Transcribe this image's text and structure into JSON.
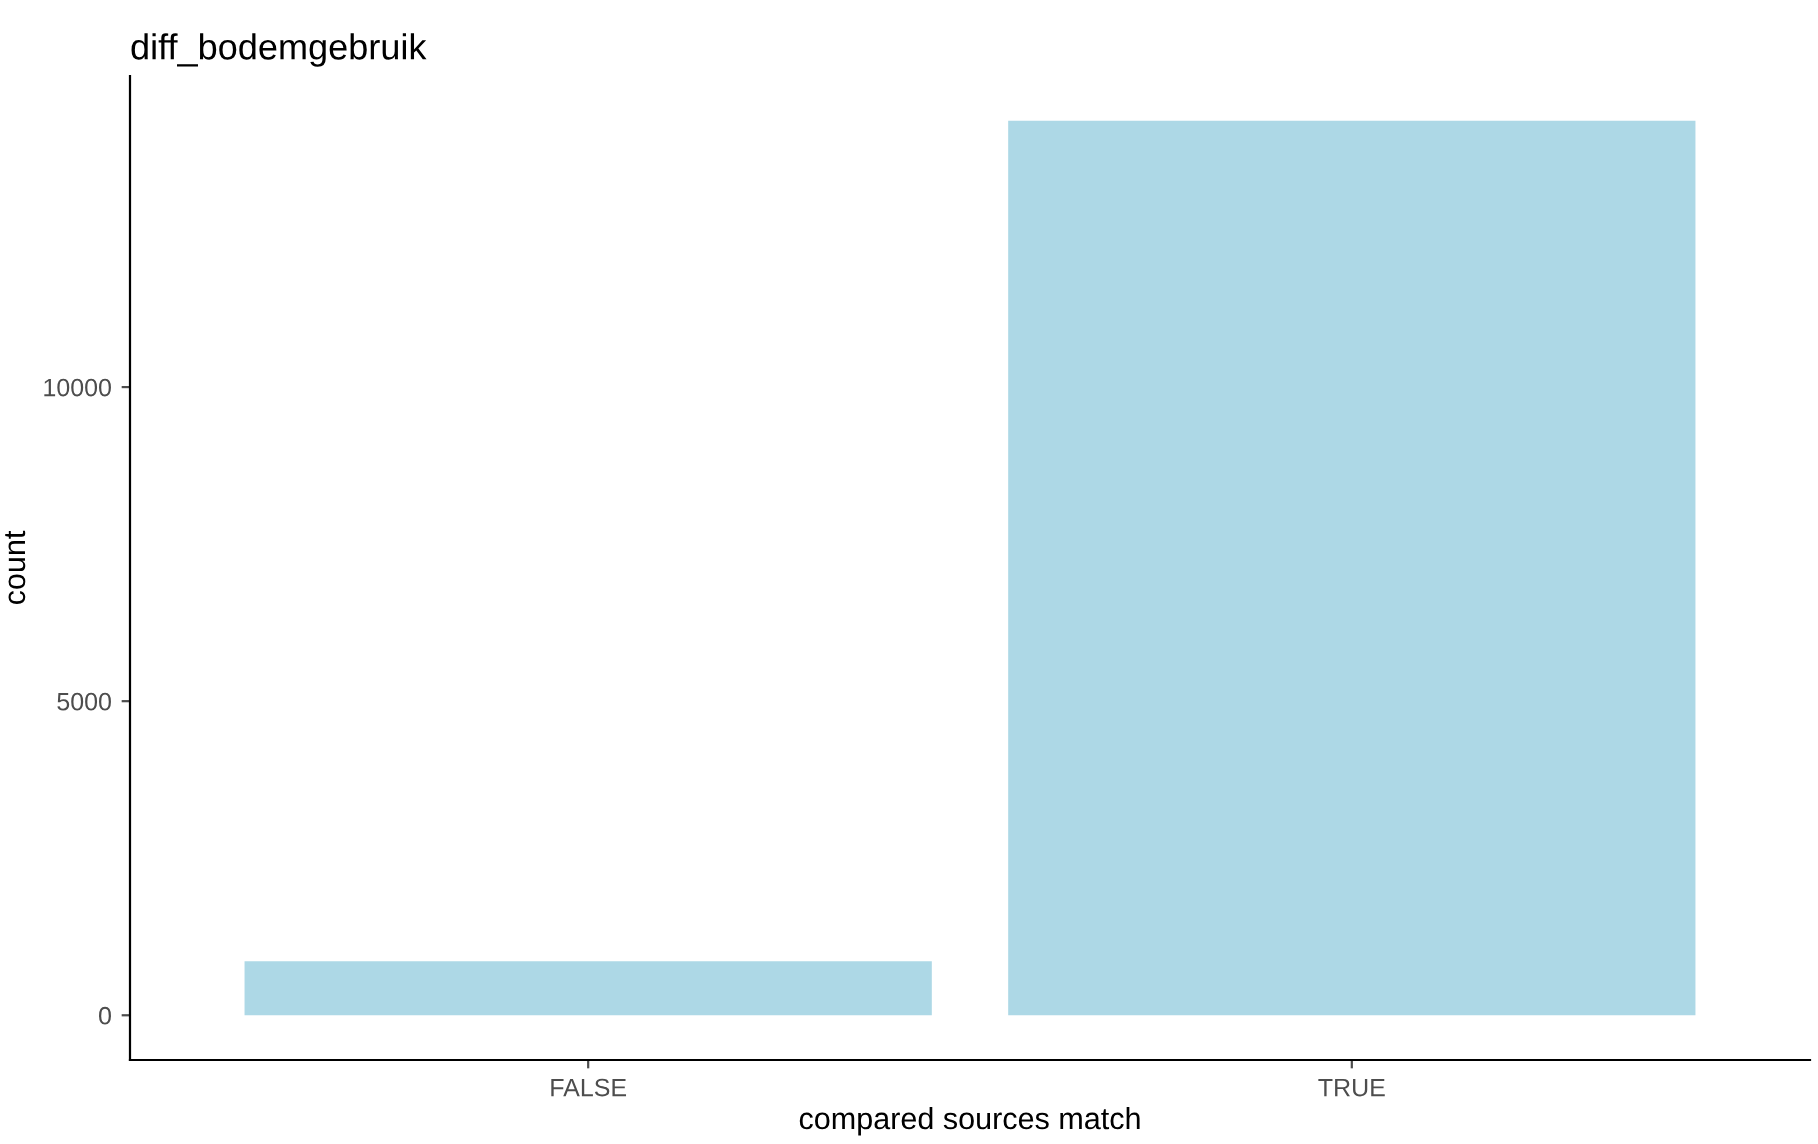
{
  "chart_data": {
    "type": "bar",
    "title": "diff_bodemgebruik",
    "xlabel": "compared sources match",
    "ylabel": "count",
    "categories": [
      "FALSE",
      "TRUE"
    ],
    "values": [
      860,
      14240
    ],
    "color": "#add8e6",
    "ylim": [
      -712,
      14952
    ],
    "yticks": [
      0,
      5000,
      10000
    ],
    "grid": false
  }
}
